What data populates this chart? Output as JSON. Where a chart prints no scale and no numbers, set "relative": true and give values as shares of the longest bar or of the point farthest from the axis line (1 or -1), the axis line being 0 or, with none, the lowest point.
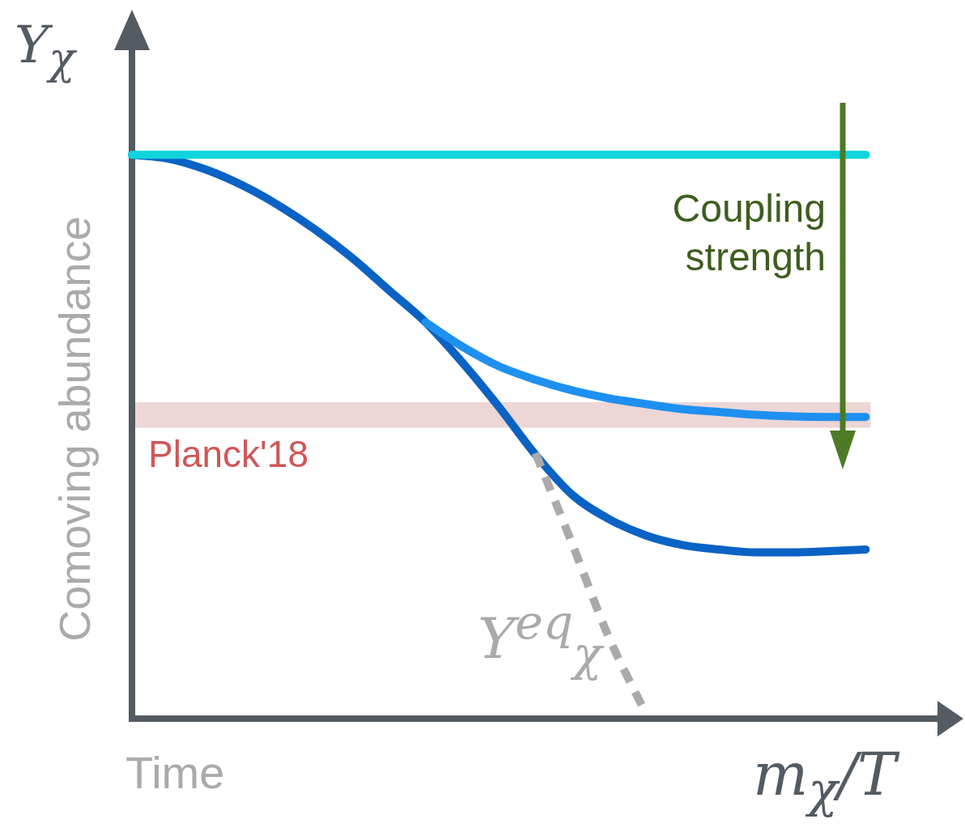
{
  "chart_data": {
    "type": "line",
    "relative": true,
    "xlabel": "Time",
    "ylabel": "Comoving abundance",
    "legend": false,
    "grid": false,
    "tick_labels": false,
    "marker": "none",
    "categories": [
      null,
      null,
      null,
      null,
      null,
      null,
      null,
      null,
      null,
      null,
      null,
      null,
      null,
      null,
      null,
      null,
      null,
      null,
      null,
      null,
      null,
      null,
      null
    ],
    "annotations": [
      "Y$_{χ}$",
      "m$_{χ}$/T",
      "Coupling strength",
      "Y$^{eq}$$_{χ}$"
    ],
    "bands": [
      {
        "axis": "y",
        "from": 0.516,
        "to": 0.561,
        "label": "Planck'18",
        "color": "#ecd6d6"
      }
    ],
    "series": [
      {
        "color": "#10d4dc",
        "values": [
          1,
          1,
          1,
          1,
          1,
          1,
          1,
          1,
          1,
          1,
          1,
          1,
          1,
          1,
          1,
          1,
          1,
          1,
          1,
          1,
          1,
          null,
          null
        ]
      },
      {
        "color": "#aaaaaa",
        "line_style": "dashed",
        "values": [
          null,
          null,
          null,
          null,
          null,
          null,
          null,
          null,
          null,
          null,
          null,
          0.471,
          0.31,
          0.144,
          0.01,
          null,
          null,
          null,
          null,
          null,
          null,
          null,
          null
        ]
      },
      {
        "color": "#1e90f0",
        "values": [
          null,
          null,
          null,
          null,
          null,
          null,
          null,
          null,
          0.703,
          0.66,
          0.625,
          0.601,
          0.582,
          0.568,
          0.558,
          0.549,
          0.544,
          0.539,
          0.536,
          0.535,
          0.535,
          null,
          null
        ]
      },
      {
        "color": "#0a63c4",
        "values": [
          1,
          0.993,
          0.974,
          0.946,
          0.91,
          0.867,
          0.817,
          0.76,
          0.703,
          0.632,
          0.553,
          0.468,
          0.397,
          0.354,
          0.325,
          0.308,
          0.3,
          0.295,
          0.295,
          0.297,
          0.3,
          null,
          null
        ]
      }
    ]
  }
}
